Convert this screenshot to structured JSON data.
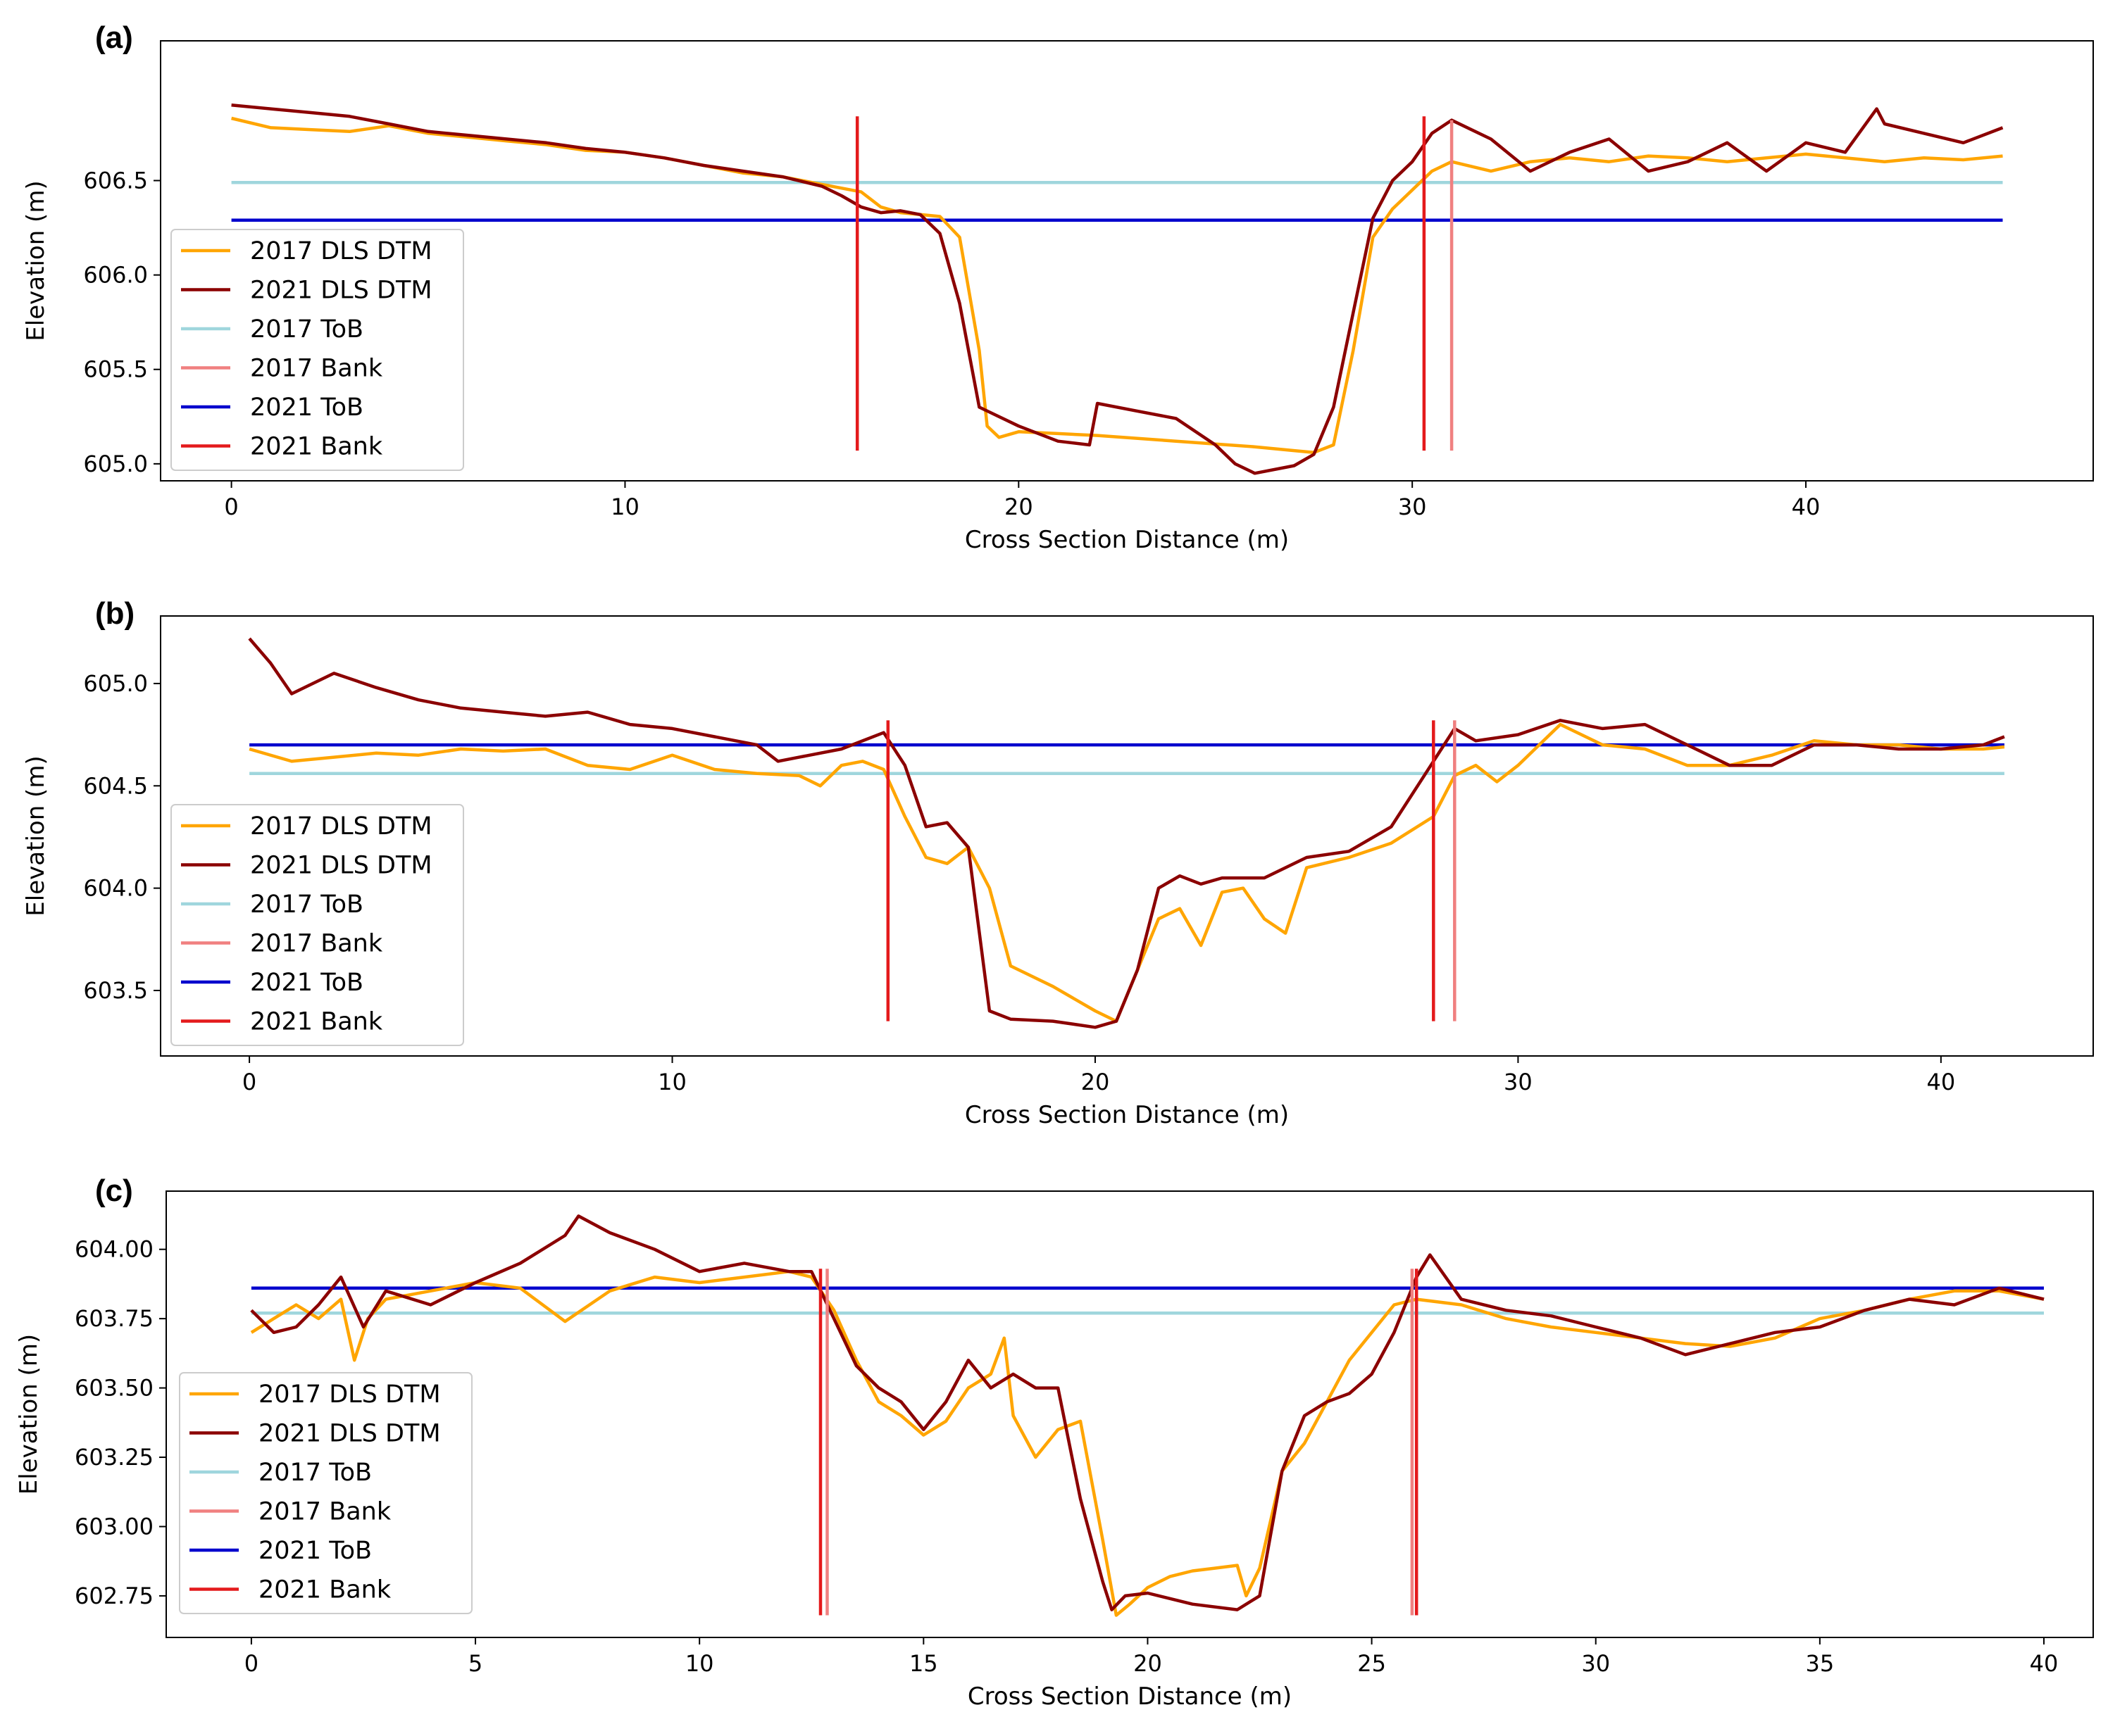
{
  "chart_data": [
    {
      "panel_label": "(a)",
      "type": "line",
      "xlabel": "Cross Section Distance (m)",
      "ylabel": "Elevation (m)",
      "xlim": [
        -1.8,
        47.3
      ],
      "ylim": [
        604.91,
        607.24
      ],
      "xticks": [
        0,
        10,
        20,
        30,
        40
      ],
      "xtick_labels": [
        "0",
        "10",
        "20",
        "30",
        "40"
      ],
      "yticks": [
        605.0,
        605.5,
        606.0,
        606.5
      ],
      "ytick_labels": [
        "605.0",
        "605.5",
        "606.0",
        "606.5"
      ],
      "series": [
        {
          "name": "2017 DLS DTM",
          "color": "#FFA500",
          "x": [
            0,
            1,
            2,
            3,
            4,
            5,
            6,
            7,
            8,
            9,
            10,
            11,
            12,
            13,
            14,
            15,
            16,
            16.5,
            17,
            17.5,
            18,
            18.5,
            19,
            19.2,
            19.5,
            20,
            21,
            22,
            24,
            26,
            27,
            27.5,
            28,
            28.5,
            29,
            29.5,
            30,
            30.5,
            31,
            32,
            33,
            34,
            35,
            36,
            37,
            38,
            39,
            40,
            41,
            42,
            43,
            44,
            45
          ],
          "y": [
            606.83,
            606.78,
            606.77,
            606.76,
            606.79,
            606.75,
            606.73,
            606.71,
            606.69,
            606.66,
            606.65,
            606.62,
            606.58,
            606.54,
            606.52,
            606.48,
            606.44,
            606.36,
            606.33,
            606.32,
            606.31,
            606.2,
            605.6,
            605.2,
            605.14,
            605.17,
            605.16,
            605.15,
            605.12,
            605.09,
            605.07,
            605.06,
            605.1,
            605.6,
            606.2,
            606.35,
            606.45,
            606.55,
            606.6,
            606.55,
            606.6,
            606.62,
            606.6,
            606.63,
            606.62,
            606.6,
            606.62,
            606.64,
            606.62,
            606.6,
            606.62,
            606.61,
            606.63
          ]
        },
        {
          "name": "2021 DLS DTM",
          "color": "#8B0000",
          "x": [
            0,
            1,
            2,
            3,
            4,
            5,
            6,
            7,
            8,
            9,
            10,
            11,
            12,
            13,
            14,
            15,
            15.5,
            16,
            16.5,
            17,
            17.5,
            18,
            18.5,
            19,
            20,
            21,
            21.8,
            22,
            23,
            24,
            25,
            25.5,
            26,
            27,
            27.5,
            28,
            28.5,
            29,
            29.5,
            30,
            30.5,
            31,
            32,
            33,
            34,
            35,
            36,
            37,
            38,
            39,
            40,
            41,
            41.8,
            42,
            43,
            44,
            45
          ],
          "y": [
            606.9,
            606.88,
            606.86,
            606.84,
            606.8,
            606.76,
            606.74,
            606.72,
            606.7,
            606.67,
            606.65,
            606.62,
            606.58,
            606.55,
            606.52,
            606.47,
            606.42,
            606.36,
            606.33,
            606.34,
            606.32,
            606.22,
            605.85,
            605.3,
            605.2,
            605.12,
            605.1,
            605.32,
            605.28,
            605.24,
            605.1,
            605.0,
            604.95,
            604.99,
            605.05,
            605.3,
            605.8,
            606.3,
            606.5,
            606.6,
            606.75,
            606.82,
            606.72,
            606.55,
            606.65,
            606.72,
            606.55,
            606.6,
            606.7,
            606.55,
            606.7,
            606.65,
            606.88,
            606.8,
            606.75,
            606.7,
            606.78
          ]
        },
        {
          "name": "2017 ToB",
          "color": "#9FD6DD",
          "x": [
            0,
            45
          ],
          "y": [
            606.49,
            606.49
          ]
        },
        {
          "name": "2017 Bank",
          "color": "#F08080",
          "x": [
            31,
            31
          ],
          "y": [
            605.07,
            606.82
          ]
        },
        {
          "name": "2021 ToB",
          "color": "#0000CD",
          "x": [
            0,
            45
          ],
          "y": [
            606.29,
            606.29
          ]
        },
        {
          "name": "2021 Bank",
          "color": "#E41A1C",
          "segments": [
            {
              "x": [
                15.9,
                15.9
              ],
              "y": [
                605.07,
                606.84
              ]
            },
            {
              "x": [
                30.3,
                30.3
              ],
              "y": [
                605.07,
                606.84
              ]
            }
          ]
        }
      ]
    },
    {
      "panel_label": "(b)",
      "type": "line",
      "xlabel": "Cross Section Distance (m)",
      "ylabel": "Elevation (m)",
      "xlim": [
        -2.1,
        43.6
      ],
      "ylim": [
        603.18,
        605.33
      ],
      "xticks": [
        0,
        10,
        20,
        30,
        40
      ],
      "xtick_labels": [
        "0",
        "10",
        "20",
        "30",
        "40"
      ],
      "yticks": [
        603.5,
        604.0,
        604.5,
        605.0
      ],
      "ytick_labels": [
        "603.5",
        "604.0",
        "604.5",
        "605.0"
      ],
      "series": [
        {
          "name": "2017 DLS DTM",
          "color": "#FFA500",
          "x": [
            0,
            1,
            2,
            3,
            4,
            5,
            6,
            7,
            8,
            9,
            10,
            11,
            12,
            13,
            13.5,
            14,
            14.5,
            15,
            15.5,
            16,
            16.5,
            17,
            17.5,
            18,
            19,
            20,
            20.5,
            21,
            21.5,
            22,
            22.5,
            23,
            23.5,
            24,
            24.5,
            25,
            26,
            27,
            28,
            28.5,
            29,
            29.5,
            30,
            30.5,
            31,
            32,
            33,
            34,
            35,
            36,
            37,
            38,
            39,
            40,
            41,
            41.5
          ],
          "y": [
            604.68,
            604.62,
            604.64,
            604.66,
            604.65,
            604.68,
            604.67,
            604.68,
            604.6,
            604.58,
            604.65,
            604.58,
            604.56,
            604.55,
            604.5,
            604.6,
            604.62,
            604.58,
            604.35,
            604.15,
            604.12,
            604.2,
            604.0,
            603.62,
            603.52,
            603.4,
            603.35,
            603.6,
            603.85,
            603.9,
            603.72,
            603.98,
            604.0,
            603.85,
            603.78,
            604.1,
            604.15,
            604.22,
            604.35,
            604.55,
            604.6,
            604.52,
            604.6,
            604.7,
            604.8,
            604.7,
            604.68,
            604.6,
            604.6,
            604.65,
            604.72,
            604.7,
            604.7,
            604.68,
            604.68,
            604.69
          ]
        },
        {
          "name": "2021 DLS DTM",
          "color": "#8B0000",
          "x": [
            0,
            0.5,
            1,
            1.5,
            2,
            3,
            4,
            5,
            6,
            7,
            8,
            9,
            10,
            11,
            12,
            12.5,
            13,
            14,
            15,
            15.5,
            16,
            16.5,
            17,
            17.5,
            18,
            19,
            20,
            20.5,
            21,
            21.5,
            22,
            22.5,
            23,
            24,
            25,
            26,
            27,
            28,
            28.5,
            29,
            30,
            31,
            32,
            33,
            34,
            35,
            36,
            37,
            38,
            39,
            40,
            41,
            41.5
          ],
          "y": [
            605.22,
            605.1,
            604.95,
            605.0,
            605.05,
            604.98,
            604.92,
            604.88,
            604.86,
            604.84,
            604.86,
            604.8,
            604.78,
            604.74,
            604.7,
            604.62,
            604.64,
            604.68,
            604.76,
            604.6,
            604.3,
            604.32,
            604.2,
            603.4,
            603.36,
            603.35,
            603.32,
            603.35,
            603.6,
            604.0,
            604.06,
            604.02,
            604.05,
            604.05,
            604.15,
            604.18,
            604.3,
            604.62,
            604.78,
            604.72,
            604.75,
            604.82,
            604.78,
            604.8,
            604.7,
            604.6,
            604.6,
            604.7,
            604.7,
            604.68,
            604.68,
            604.7,
            604.74
          ]
        },
        {
          "name": "2017 ToB",
          "color": "#9FD6DD",
          "x": [
            0,
            41.5
          ],
          "y": [
            604.56,
            604.56
          ]
        },
        {
          "name": "2017 Bank",
          "color": "#F08080",
          "x": [
            28.5,
            28.5
          ],
          "y": [
            603.35,
            604.82
          ]
        },
        {
          "name": "2021 ToB",
          "color": "#0000CD",
          "x": [
            0,
            41.5
          ],
          "y": [
            604.7,
            604.7
          ]
        },
        {
          "name": "2021 Bank",
          "color": "#E41A1C",
          "segments": [
            {
              "x": [
                15.1,
                15.1
              ],
              "y": [
                603.35,
                604.82
              ]
            },
            {
              "x": [
                28.0,
                28.0
              ],
              "y": [
                603.35,
                604.82
              ]
            }
          ]
        }
      ]
    },
    {
      "panel_label": "(c)",
      "type": "line",
      "xlabel": "Cross Section Distance (m)",
      "ylabel": "Elevation (m)",
      "xlim": [
        -1.9,
        41.1
      ],
      "ylim": [
        602.6,
        604.21
      ],
      "xticks": [
        0,
        5,
        10,
        15,
        20,
        25,
        30,
        35,
        40
      ],
      "xtick_labels": [
        "0",
        "5",
        "10",
        "15",
        "20",
        "25",
        "30",
        "35",
        "40"
      ],
      "yticks": [
        602.75,
        603.0,
        603.25,
        603.5,
        603.75,
        604.0
      ],
      "ytick_labels": [
        "602.75",
        "603.00",
        "603.25",
        "603.50",
        "603.75",
        "604.00"
      ],
      "series": [
        {
          "name": "2017 DLS DTM",
          "color": "#FFA500",
          "x": [
            0,
            0.5,
            1,
            1.5,
            2,
            2.3,
            2.6,
            3,
            4,
            5,
            6,
            7,
            8,
            9,
            10,
            11,
            12,
            12.5,
            13,
            13.5,
            14,
            14.5,
            15,
            15.5,
            16,
            16.5,
            16.8,
            17,
            17.5,
            18,
            18.5,
            19,
            19.3,
            19.6,
            20,
            20.5,
            21,
            21.5,
            22,
            22.2,
            22.5,
            23,
            23.5,
            24,
            24.5,
            25,
            25.5,
            26,
            27,
            28,
            29,
            30,
            31,
            32,
            33,
            34,
            35,
            36,
            37,
            38,
            39,
            40
          ],
          "y": [
            603.7,
            603.75,
            603.8,
            603.75,
            603.82,
            603.6,
            603.75,
            603.82,
            603.85,
            603.88,
            603.86,
            603.74,
            603.85,
            603.9,
            603.88,
            603.9,
            603.92,
            603.9,
            603.78,
            603.6,
            603.45,
            603.4,
            603.33,
            603.38,
            603.5,
            603.55,
            603.68,
            603.4,
            603.25,
            603.35,
            603.38,
            602.95,
            602.68,
            602.72,
            602.78,
            602.82,
            602.84,
            602.85,
            602.86,
            602.75,
            602.85,
            603.2,
            603.3,
            603.45,
            603.6,
            603.7,
            603.8,
            603.82,
            603.8,
            603.75,
            603.72,
            603.7,
            603.68,
            603.66,
            603.65,
            603.68,
            603.75,
            603.78,
            603.82,
            603.85,
            603.85,
            603.82
          ]
        },
        {
          "name": "2021 DLS DTM",
          "color": "#8B0000",
          "x": [
            0,
            0.5,
            1,
            1.5,
            2,
            2.5,
            3,
            4,
            5,
            6,
            7,
            7.3,
            8,
            9,
            10,
            11,
            12,
            12.5,
            13,
            13.5,
            14,
            14.5,
            15,
            15.5,
            16,
            16.5,
            17,
            17.5,
            18,
            18.5,
            19,
            19.2,
            19.5,
            20,
            21,
            22,
            22.5,
            23,
            23.5,
            24,
            24.5,
            25,
            25.5,
            26,
            26.3,
            27,
            28,
            29,
            30,
            31,
            32,
            33,
            34,
            35,
            36,
            37,
            38,
            39,
            40
          ],
          "y": [
            603.78,
            603.7,
            603.72,
            603.8,
            603.9,
            603.72,
            603.85,
            603.8,
            603.88,
            603.95,
            604.05,
            604.12,
            604.06,
            604.0,
            603.92,
            603.95,
            603.92,
            603.92,
            603.75,
            603.58,
            603.5,
            603.45,
            603.35,
            603.45,
            603.6,
            603.5,
            603.55,
            603.5,
            603.5,
            603.1,
            602.8,
            602.7,
            602.75,
            602.76,
            602.72,
            602.7,
            602.75,
            603.2,
            603.4,
            603.45,
            603.48,
            603.55,
            603.7,
            603.9,
            603.98,
            603.82,
            603.78,
            603.76,
            603.72,
            603.68,
            603.62,
            603.66,
            603.7,
            603.72,
            603.78,
            603.82,
            603.8,
            603.86,
            603.82
          ]
        },
        {
          "name": "2017 ToB",
          "color": "#9FD6DD",
          "x": [
            0,
            40
          ],
          "y": [
            603.77,
            603.77
          ]
        },
        {
          "name": "2017 Bank",
          "color": "#F08080",
          "segments": [
            {
              "x": [
                12.85,
                12.85
              ],
              "y": [
                602.68,
                603.93
              ]
            },
            {
              "x": [
                25.9,
                25.9
              ],
              "y": [
                602.68,
                603.93
              ]
            }
          ]
        },
        {
          "name": "2021 ToB",
          "color": "#0000CD",
          "x": [
            0,
            40
          ],
          "y": [
            603.86,
            603.86
          ]
        },
        {
          "name": "2021 Bank",
          "color": "#E41A1C",
          "segments": [
            {
              "x": [
                12.7,
                12.7
              ],
              "y": [
                602.68,
                603.93
              ]
            },
            {
              "x": [
                26.0,
                26.0
              ],
              "y": [
                602.68,
                603.93
              ]
            }
          ]
        }
      ]
    }
  ]
}
